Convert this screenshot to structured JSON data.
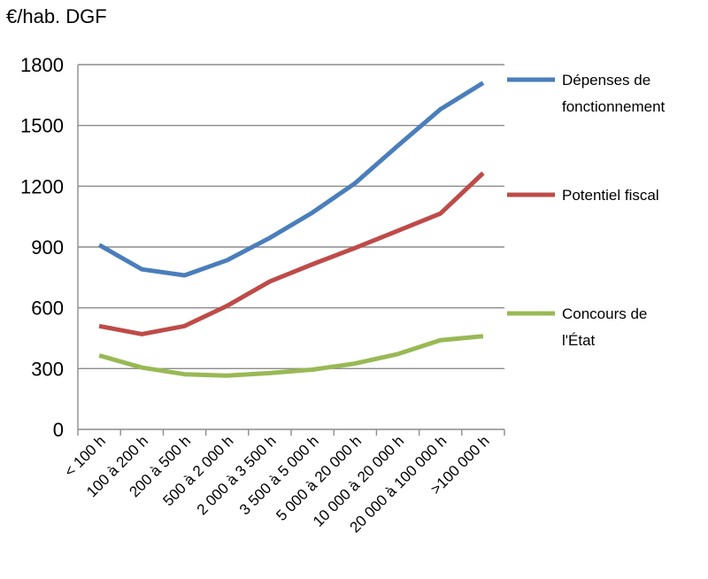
{
  "chart_data": {
    "type": "line",
    "title": "",
    "ylabel": "€/hab. DGF",
    "xlabel": "",
    "ylim": [
      0,
      1800
    ],
    "yticks": [
      0,
      300,
      600,
      900,
      1200,
      1500,
      1800
    ],
    "grid": "horizontal",
    "legend_position": "right",
    "categories": [
      "< 100 h",
      "100 à 200 h",
      "200 à 500 h",
      "500 à 2 000 h",
      "2 000 à 3 500 h",
      "3 500 à 5 000 h",
      "5 000 à 20 000 h",
      "10 000 à 20 000 h",
      "20 000 à 100 000 h",
      ">100 000 h"
    ],
    "series": [
      {
        "name_lines": [
          "Dépenses de",
          "fonctionnement"
        ],
        "color": "#4a7ebb",
        "values": [
          910,
          790,
          760,
          835,
          945,
          1070,
          1215,
          1400,
          1580,
          1710
        ]
      },
      {
        "name_lines": [
          "Potentiel fiscal"
        ],
        "color": "#be4b48",
        "values": [
          510,
          470,
          510,
          610,
          730,
          815,
          895,
          980,
          1065,
          1265
        ]
      },
      {
        "name_lines": [
          "Concours de",
          "l'État"
        ],
        "color": "#98b954",
        "values": [
          365,
          305,
          272,
          265,
          278,
          295,
          325,
          372,
          440,
          460
        ]
      }
    ]
  }
}
